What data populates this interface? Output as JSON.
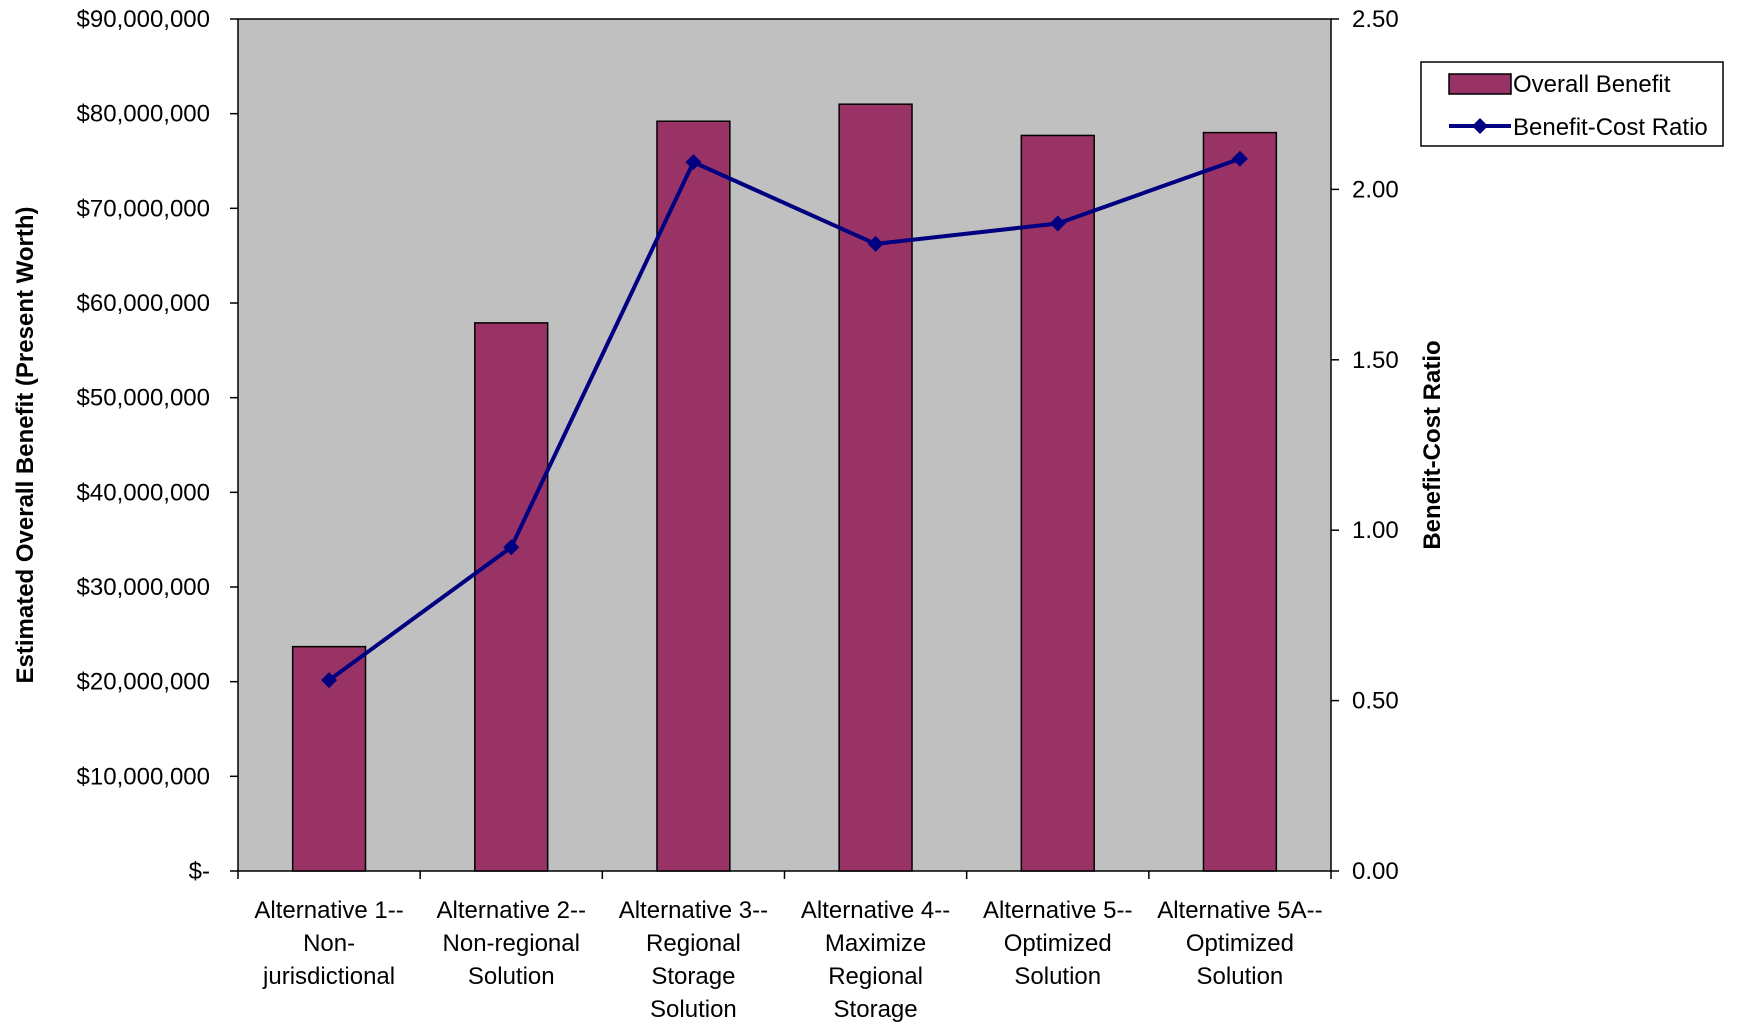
{
  "chart_data": {
    "type": "bar",
    "categories": [
      [
        "Alternative 1--",
        "Non-",
        "jurisdictional"
      ],
      [
        "Alternative 2--",
        "Non-regional",
        "Solution"
      ],
      [
        "Alternative 3--",
        "Regional",
        "Storage",
        "Solution"
      ],
      [
        "Alternative 4--",
        "Maximize",
        "Regional",
        "Storage"
      ],
      [
        "Alternative 5--",
        "Optimized",
        "Solution"
      ],
      [
        "Alternative 5A--",
        "Optimized",
        "Solution"
      ]
    ],
    "series": [
      {
        "name": "Overall Benefit",
        "type": "bar",
        "axis": "left",
        "color": "#993366",
        "values": [
          23700000,
          57900000,
          79200000,
          81000000,
          77700000,
          78000000
        ]
      },
      {
        "name": "Benefit-Cost Ratio",
        "type": "line",
        "axis": "right",
        "color": "#000080",
        "marker": "diamond",
        "values": [
          0.56,
          0.95,
          2.08,
          1.84,
          1.9,
          2.09
        ]
      }
    ],
    "ylabel": "Estimated Overall Benefit (Present Worth)",
    "y2label": "Benefit-Cost Ratio",
    "ylim": [
      0,
      90000000
    ],
    "y2lim": [
      0,
      2.5
    ],
    "yticks": [
      "$-",
      "$10,000,000",
      "$20,000,000",
      "$30,000,000",
      "$40,000,000",
      "$50,000,000",
      "$60,000,000",
      "$70,000,000",
      "$80,000,000",
      "$90,000,000"
    ],
    "y2ticks": [
      "0.00",
      "0.50",
      "1.00",
      "1.50",
      "2.00",
      "2.50"
    ],
    "plot_background": "#c0c0c0",
    "grid": false,
    "legend_position": "right"
  }
}
